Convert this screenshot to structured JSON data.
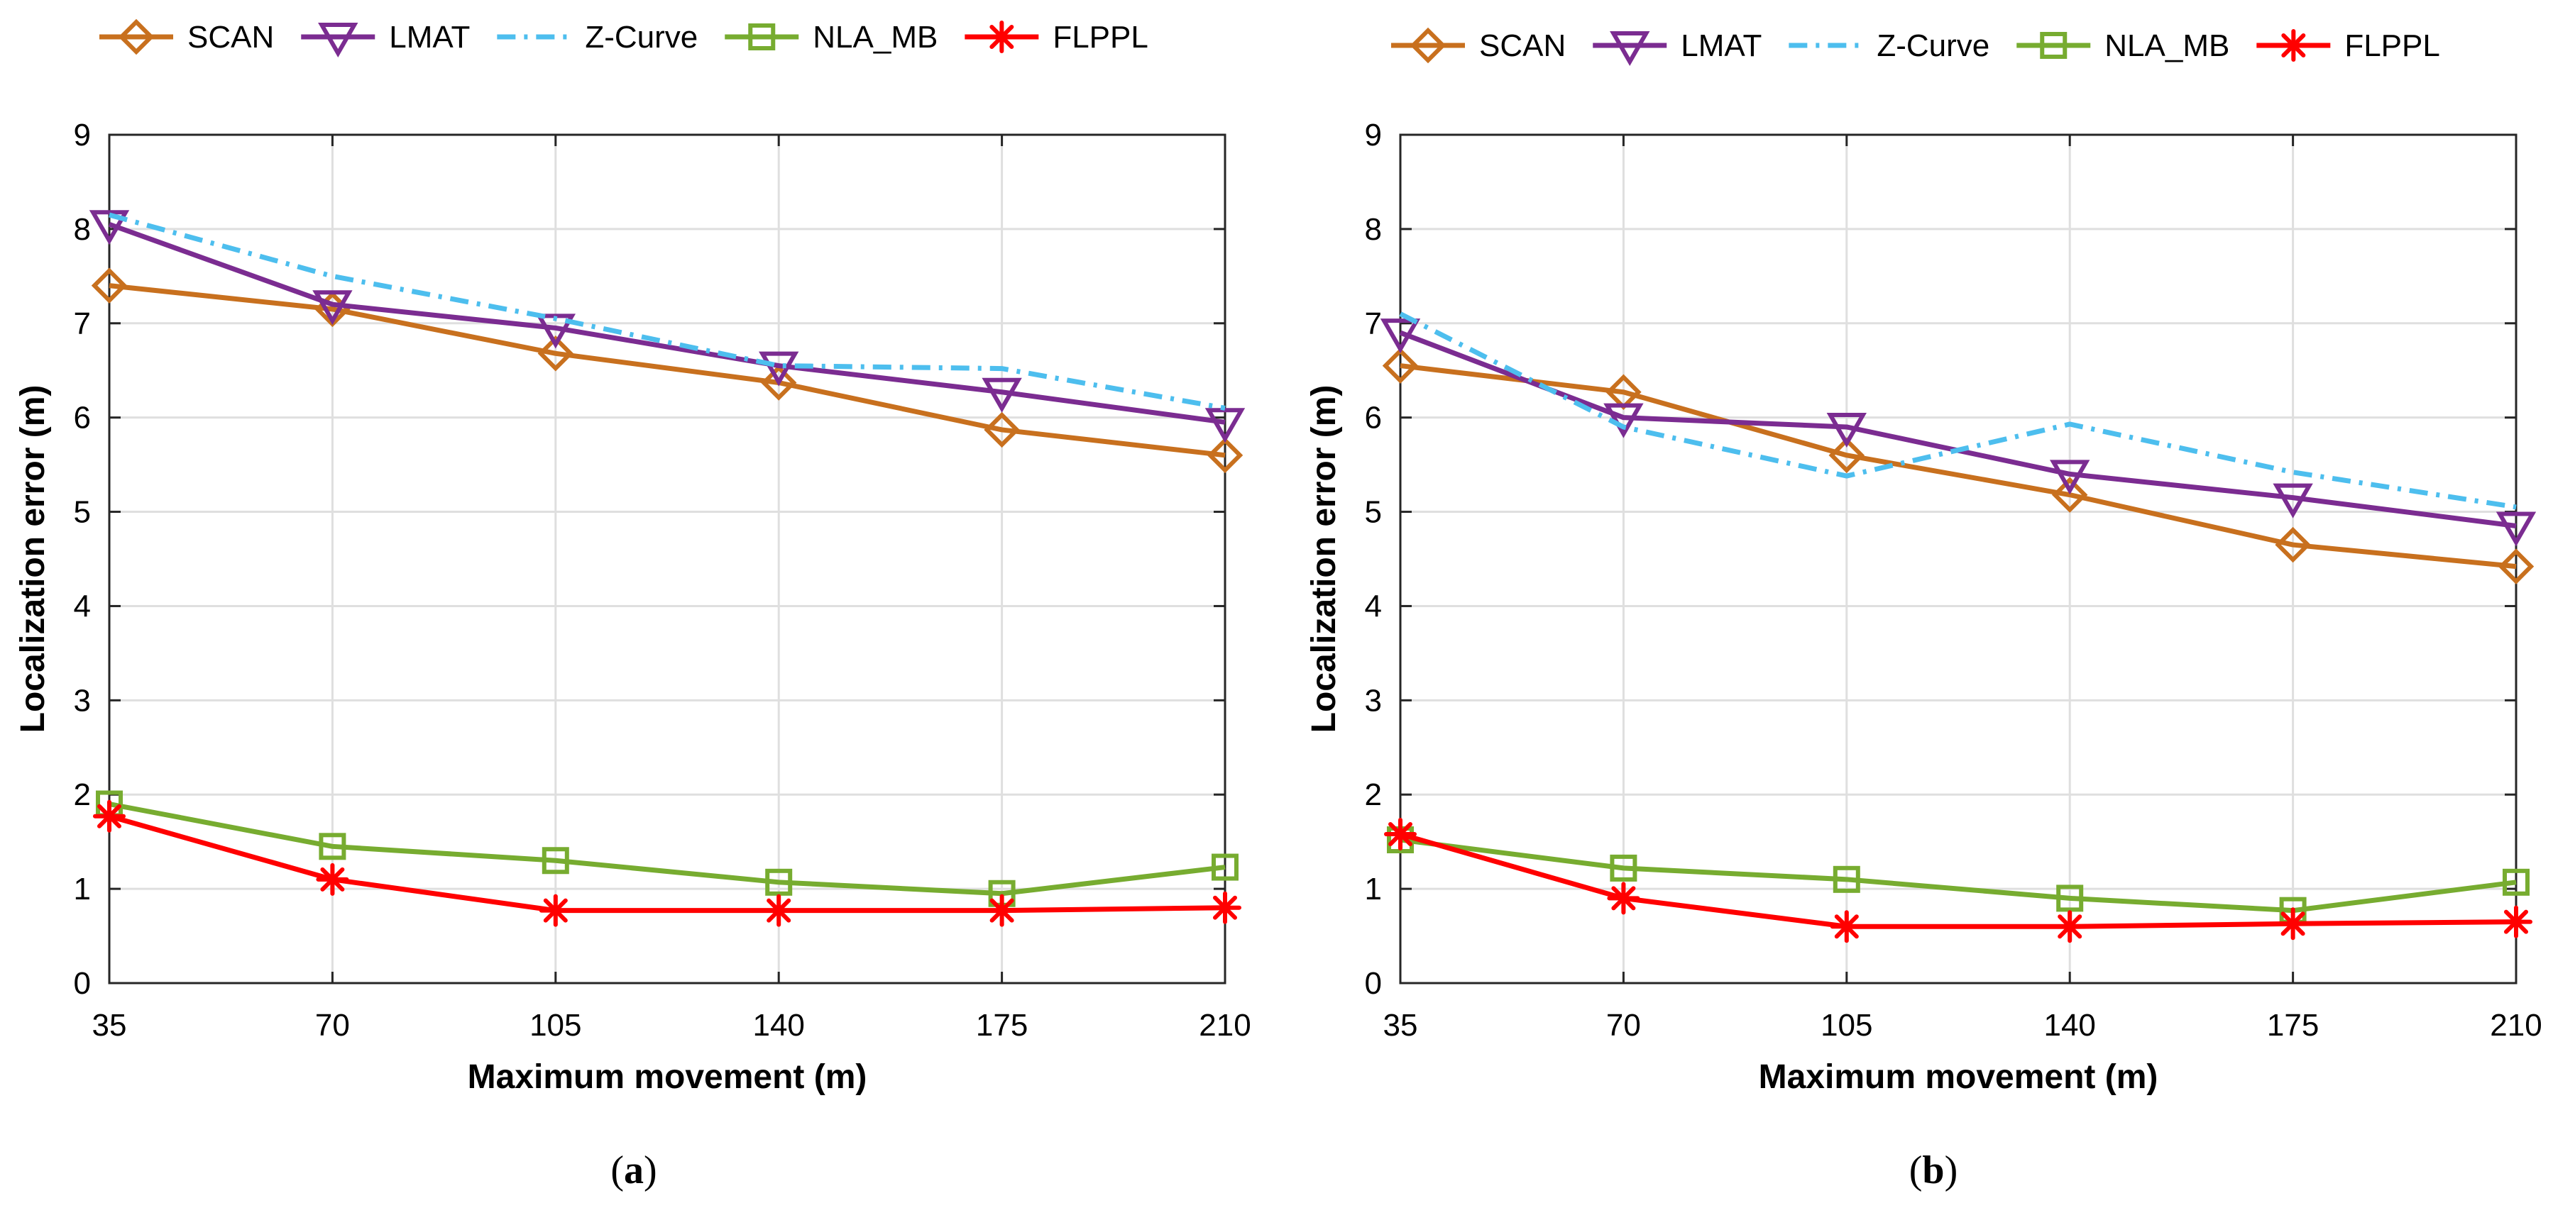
{
  "chart_data": [
    {
      "type": "line",
      "caption_open": "(",
      "caption_letter": "a",
      "caption_close": ")",
      "xlabel": "Maximum movement (m)",
      "ylabel": "Localization error (m)",
      "x": [
        35,
        70,
        105,
        140,
        175,
        210
      ],
      "xticks": [
        "35",
        "70",
        "105",
        "140",
        "175",
        "210"
      ],
      "yticks": [
        "0",
        "1",
        "2",
        "3",
        "4",
        "5",
        "6",
        "7",
        "8",
        "9"
      ],
      "xlim": [
        35,
        210
      ],
      "ylim": [
        0,
        9
      ],
      "grid": true,
      "legend_position": "top",
      "series": [
        {
          "name": "SCAN",
          "color": "#C8701E",
          "style": "solid",
          "marker": "diamond",
          "values": [
            7.4,
            7.15,
            6.68,
            6.37,
            5.87,
            5.6
          ]
        },
        {
          "name": "LMAT",
          "color": "#7B2C91",
          "style": "solid",
          "marker": "triangle-down",
          "values": [
            8.05,
            7.2,
            6.95,
            6.55,
            6.27,
            5.95
          ]
        },
        {
          "name": "Z-Curve",
          "color": "#4DBEEE",
          "style": "dashdot",
          "marker": "none",
          "values": [
            8.15,
            7.5,
            7.05,
            6.55,
            6.52,
            6.1
          ]
        },
        {
          "name": "NLA_MB",
          "color": "#77AC30",
          "style": "solid",
          "marker": "square",
          "values": [
            1.9,
            1.45,
            1.3,
            1.07,
            0.95,
            1.23
          ]
        },
        {
          "name": "FLPPL",
          "color": "#FF0000",
          "style": "solid",
          "marker": "asterisk",
          "values": [
            1.77,
            1.1,
            0.77,
            0.77,
            0.77,
            0.8
          ]
        }
      ]
    },
    {
      "type": "line",
      "caption_open": "(",
      "caption_letter": "b",
      "caption_close": ")",
      "xlabel": "Maximum movement (m)",
      "ylabel": "Localization error (m)",
      "x": [
        35,
        70,
        105,
        140,
        175,
        210
      ],
      "xticks": [
        "35",
        "70",
        "105",
        "140",
        "175",
        "210"
      ],
      "yticks": [
        "0",
        "1",
        "2",
        "3",
        "4",
        "5",
        "6",
        "7",
        "8",
        "9"
      ],
      "xlim": [
        35,
        210
      ],
      "ylim": [
        0,
        9
      ],
      "grid": true,
      "legend_position": "top",
      "series": [
        {
          "name": "SCAN",
          "color": "#C8701E",
          "style": "solid",
          "marker": "diamond",
          "values": [
            6.55,
            6.27,
            5.6,
            5.18,
            4.65,
            4.42
          ]
        },
        {
          "name": "LMAT",
          "color": "#7B2C91",
          "style": "solid",
          "marker": "triangle-down",
          "values": [
            6.9,
            6.0,
            5.9,
            5.4,
            5.15,
            4.85
          ]
        },
        {
          "name": "Z-Curve",
          "color": "#4DBEEE",
          "style": "dashdot",
          "marker": "none",
          "values": [
            7.1,
            5.9,
            5.38,
            5.93,
            5.42,
            5.05
          ]
        },
        {
          "name": "NLA_MB",
          "color": "#77AC30",
          "style": "solid",
          "marker": "square",
          "values": [
            1.52,
            1.22,
            1.1,
            0.9,
            0.77,
            1.07
          ]
        },
        {
          "name": "FLPPL",
          "color": "#FF0000",
          "style": "solid",
          "marker": "asterisk",
          "values": [
            1.58,
            0.9,
            0.6,
            0.6,
            0.63,
            0.65
          ]
        }
      ]
    }
  ]
}
